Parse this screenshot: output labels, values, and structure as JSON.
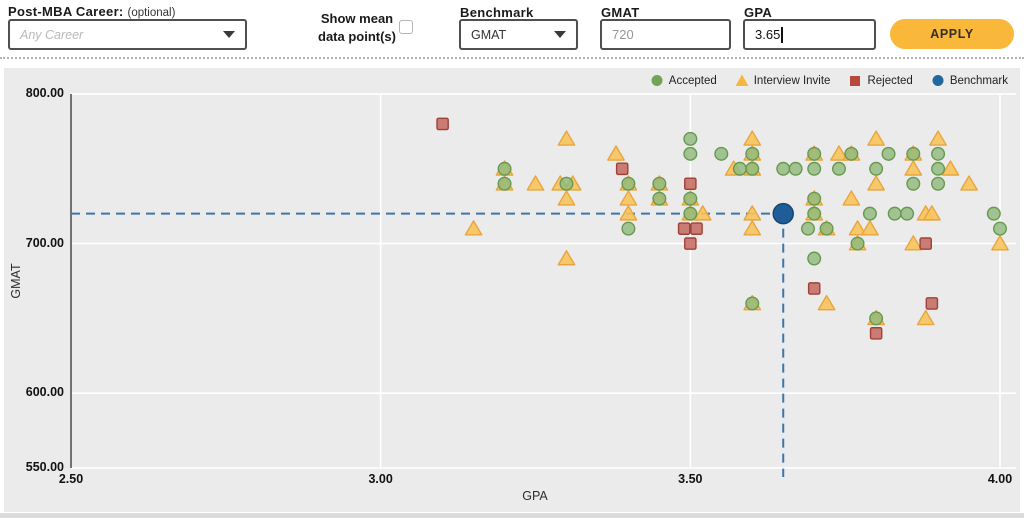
{
  "header": {
    "career_label": "Post-MBA Career:",
    "career_optional": "(optional)",
    "career_placeholder": "Any Career",
    "show_mean_line1": "Show mean",
    "show_mean_line2": "data point(s)",
    "show_mean_checked": false,
    "benchmark_label": "Benchmark",
    "benchmark_value": "GMAT",
    "gmat_label": "GMAT",
    "gmat_value": "720",
    "gpa_label": "GPA",
    "gpa_value": "3.65",
    "apply_label": "APPLY",
    "apply_color": "#f9b83a"
  },
  "chart_data": {
    "type": "scatter",
    "xlabel": "GPA",
    "ylabel": "GMAT",
    "xlim": [
      2.5,
      4.0
    ],
    "ylim": [
      550,
      800
    ],
    "grid": true,
    "legend_position": "top-right",
    "x_ticks": [
      {
        "value": 2.5,
        "label": "2.50"
      },
      {
        "value": 3.0,
        "label": "3.00"
      },
      {
        "value": 3.5,
        "label": "3.50"
      },
      {
        "value": 4.0,
        "label": "4.00"
      }
    ],
    "y_ticks": [
      {
        "value": 550,
        "label": "550.00"
      },
      {
        "value": 600,
        "label": "600.00"
      },
      {
        "value": 700,
        "label": "700.00"
      },
      {
        "value": 800,
        "label": "800.00"
      }
    ],
    "grid_x": [
      3.0,
      3.5,
      4.0
    ],
    "grid_y": [
      600,
      700,
      800
    ],
    "colors": {
      "panel_bg": "#ebebeb",
      "gridline": "#ffffff",
      "axis_line": "#4a4a4a",
      "benchmark_dash": "#3f75ac"
    },
    "legend": [
      {
        "label": "Accepted",
        "marker": "circle",
        "fill": "#71a556",
        "stroke": "#5d8f46"
      },
      {
        "label": "Interview Invite",
        "marker": "triangle",
        "fill": "#f4b83f",
        "stroke": "#e8a42e"
      },
      {
        "label": "Rejected",
        "marker": "square",
        "fill": "#b94a3b",
        "stroke": "#a03c30"
      },
      {
        "label": "Benchmark",
        "marker": "circle",
        "fill": "#2268a0",
        "stroke": "#1b537f"
      }
    ],
    "series": [
      {
        "name": "Interview Invite",
        "marker": "triangle",
        "fill": "#f8c45c",
        "stroke": "#e8a53e",
        "fill_opacity": 0.9,
        "points": [
          [
            3.15,
            710
          ],
          [
            3.2,
            750
          ],
          [
            3.2,
            740
          ],
          [
            3.25,
            740
          ],
          [
            3.29,
            740
          ],
          [
            3.31,
            740
          ],
          [
            3.3,
            770
          ],
          [
            3.3,
            730
          ],
          [
            3.3,
            690
          ],
          [
            3.38,
            760
          ],
          [
            3.4,
            740
          ],
          [
            3.4,
            730
          ],
          [
            3.4,
            720
          ],
          [
            3.45,
            740
          ],
          [
            3.45,
            730
          ],
          [
            3.5,
            730
          ],
          [
            3.5,
            720
          ],
          [
            3.52,
            720
          ],
          [
            3.57,
            750
          ],
          [
            3.6,
            770
          ],
          [
            3.6,
            760
          ],
          [
            3.6,
            750
          ],
          [
            3.6,
            720
          ],
          [
            3.6,
            710
          ],
          [
            3.6,
            660
          ],
          [
            3.7,
            760
          ],
          [
            3.7,
            730
          ],
          [
            3.7,
            720
          ],
          [
            3.72,
            710
          ],
          [
            3.72,
            660
          ],
          [
            3.74,
            760
          ],
          [
            3.76,
            760
          ],
          [
            3.76,
            730
          ],
          [
            3.77,
            710
          ],
          [
            3.79,
            710
          ],
          [
            3.77,
            700
          ],
          [
            3.8,
            770
          ],
          [
            3.8,
            740
          ],
          [
            3.8,
            650
          ],
          [
            3.86,
            760
          ],
          [
            3.86,
            750
          ],
          [
            3.86,
            700
          ],
          [
            3.88,
            720
          ],
          [
            3.89,
            720
          ],
          [
            3.88,
            650
          ],
          [
            3.9,
            770
          ],
          [
            3.92,
            750
          ],
          [
            3.95,
            740
          ],
          [
            4.0,
            700
          ]
        ]
      },
      {
        "name": "Accepted",
        "marker": "circle",
        "fill": "#8fb97c",
        "stroke": "#67984f",
        "fill_opacity": 0.82,
        "points": [
          [
            3.2,
            750
          ],
          [
            3.2,
            740
          ],
          [
            3.3,
            740
          ],
          [
            3.4,
            740
          ],
          [
            3.4,
            710
          ],
          [
            3.45,
            740
          ],
          [
            3.45,
            730
          ],
          [
            3.5,
            770
          ],
          [
            3.5,
            760
          ],
          [
            3.5,
            730
          ],
          [
            3.5,
            720
          ],
          [
            3.55,
            760
          ],
          [
            3.58,
            750
          ],
          [
            3.6,
            760
          ],
          [
            3.6,
            750
          ],
          [
            3.65,
            750
          ],
          [
            3.67,
            750
          ],
          [
            3.7,
            760
          ],
          [
            3.7,
            750
          ],
          [
            3.7,
            730
          ],
          [
            3.7,
            720
          ],
          [
            3.69,
            710
          ],
          [
            3.7,
            690
          ],
          [
            3.74,
            750
          ],
          [
            3.76,
            760
          ],
          [
            3.72,
            710
          ],
          [
            3.77,
            700
          ],
          [
            3.79,
            720
          ],
          [
            3.8,
            750
          ],
          [
            3.82,
            760
          ],
          [
            3.83,
            720
          ],
          [
            3.85,
            720
          ],
          [
            3.86,
            760
          ],
          [
            3.86,
            740
          ],
          [
            3.9,
            760
          ],
          [
            3.9,
            750
          ],
          [
            3.9,
            740
          ],
          [
            3.99,
            720
          ],
          [
            4.0,
            710
          ],
          [
            3.6,
            660
          ],
          [
            3.8,
            650
          ]
        ]
      },
      {
        "name": "Rejected",
        "marker": "square",
        "fill": "#c2685e",
        "stroke": "#a04138",
        "fill_opacity": 0.85,
        "points": [
          [
            3.1,
            780
          ],
          [
            3.39,
            750
          ],
          [
            3.5,
            740
          ],
          [
            3.49,
            710
          ],
          [
            3.51,
            710
          ],
          [
            3.5,
            700
          ],
          [
            3.7,
            670
          ],
          [
            3.8,
            640
          ],
          [
            3.88,
            700
          ],
          [
            3.89,
            660
          ]
        ]
      }
    ],
    "benchmark": {
      "gpa": 3.65,
      "gmat": 720,
      "fill": "#1f5d99",
      "stroke": "#14486f"
    }
  }
}
